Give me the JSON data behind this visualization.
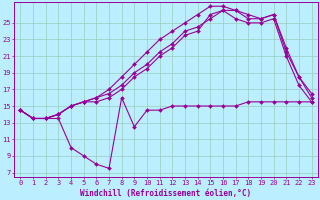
{
  "xlabel": "Windchill (Refroidissement éolien,°C)",
  "background_color": "#bbeeff",
  "grid_color": "#99ccbb",
  "line_color": "#990099",
  "xlim": [
    -0.5,
    23.5
  ],
  "ylim": [
    6.5,
    27.5
  ],
  "yticks": [
    7,
    9,
    11,
    13,
    15,
    17,
    19,
    21,
    23,
    25
  ],
  "xticks": [
    0,
    1,
    2,
    3,
    4,
    5,
    6,
    7,
    8,
    9,
    10,
    11,
    12,
    13,
    14,
    15,
    16,
    17,
    18,
    19,
    20,
    21,
    22,
    23
  ],
  "series": [
    {
      "x": [
        0,
        1,
        2,
        3,
        4,
        5,
        6,
        7,
        8,
        9,
        10,
        11,
        12,
        13,
        14,
        15,
        16,
        17,
        18,
        19,
        20,
        21,
        22,
        23
      ],
      "y": [
        14.5,
        13.5,
        13.5,
        13.5,
        10.0,
        9.0,
        8.0,
        7.5,
        16.0,
        12.5,
        14.5,
        14.5,
        15.0,
        15.0,
        15.0,
        15.0,
        15.0,
        15.0,
        15.5,
        15.5,
        15.5,
        15.5,
        15.5,
        15.5
      ]
    },
    {
      "x": [
        0,
        1,
        2,
        3,
        4,
        5,
        6,
        7,
        8,
        9,
        10,
        11,
        12,
        13,
        14,
        15,
        16,
        17,
        18,
        19,
        20,
        21,
        22,
        23
      ],
      "y": [
        14.5,
        13.5,
        13.5,
        14.0,
        15.0,
        15.5,
        15.5,
        16.0,
        17.0,
        18.5,
        19.5,
        21.0,
        22.0,
        23.5,
        24.0,
        26.0,
        26.5,
        25.5,
        25.0,
        25.0,
        25.5,
        21.0,
        17.5,
        15.5
      ]
    },
    {
      "x": [
        0,
        1,
        2,
        3,
        4,
        5,
        6,
        7,
        8,
        9,
        10,
        11,
        12,
        13,
        14,
        15,
        16,
        17,
        18,
        19,
        20,
        21,
        22,
        23
      ],
      "y": [
        14.5,
        13.5,
        13.5,
        14.0,
        15.0,
        15.5,
        16.0,
        16.5,
        17.5,
        19.0,
        20.0,
        21.5,
        22.5,
        24.0,
        24.5,
        25.5,
        26.5,
        26.5,
        25.5,
        25.5,
        26.0,
        21.5,
        18.5,
        16.0
      ]
    },
    {
      "x": [
        0,
        1,
        2,
        3,
        4,
        5,
        6,
        7,
        8,
        9,
        10,
        11,
        12,
        13,
        14,
        15,
        16,
        17,
        18,
        19,
        20,
        21,
        22,
        23
      ],
      "y": [
        14.5,
        13.5,
        13.5,
        14.0,
        15.0,
        15.5,
        16.0,
        17.0,
        18.5,
        20.0,
        21.5,
        23.0,
        24.0,
        25.0,
        26.0,
        27.0,
        27.0,
        26.5,
        26.0,
        25.5,
        26.0,
        22.0,
        18.5,
        16.5
      ]
    }
  ],
  "tick_fontsize": 5.0,
  "xlabel_fontsize": 5.5,
  "linewidth": 0.8,
  "markersize": 2.0
}
